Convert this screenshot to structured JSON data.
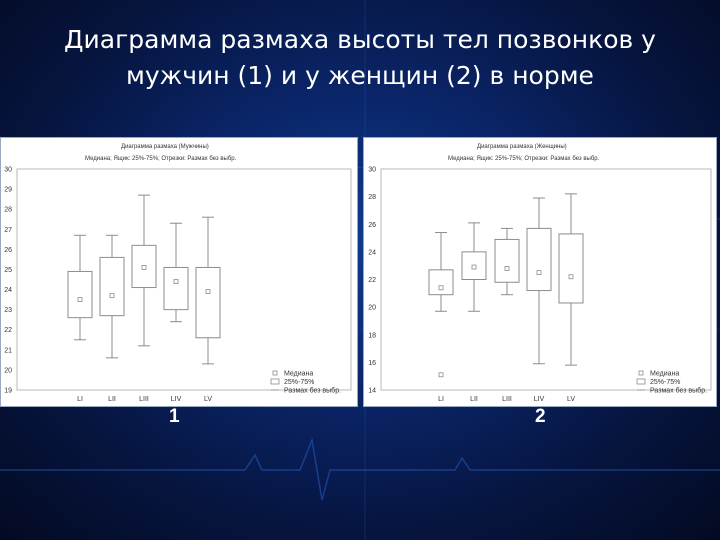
{
  "slide": {
    "title_line1": "Диаграмма размаха высоты тел позвонков у",
    "title_line2": "мужчин (1) и у женщин (2) в норме"
  },
  "colors": {
    "background": "#0a2466",
    "box_stroke": "#8c8c8c",
    "median_marker": "#8c8c8c"
  },
  "chart_data": [
    {
      "type": "box",
      "number_label": "1",
      "title": "Диаграмма размаха (Мужчины)",
      "subtitle": "Медиана; Ящик: 25%-75%; Отрезки: Размах без выбр.",
      "categories": [
        "LI",
        "LII",
        "LIII",
        "LIV",
        "LV"
      ],
      "ylim": [
        19,
        30
      ],
      "yticks": [
        19,
        20,
        21,
        22,
        23,
        24,
        25,
        26,
        27,
        28,
        29,
        30
      ],
      "grid": false,
      "legend_position": "bottom-right",
      "legend": [
        "Медиана",
        "25%-75%",
        "Размах без выбр."
      ],
      "series": [
        {
          "category": "LI",
          "min": 21.5,
          "q1": 22.6,
          "median": 23.5,
          "q3": 24.9,
          "max": 26.7
        },
        {
          "category": "LII",
          "min": 20.6,
          "q1": 22.7,
          "median": 23.7,
          "q3": 25.6,
          "max": 26.7
        },
        {
          "category": "LIII",
          "min": 21.2,
          "q1": 24.1,
          "median": 25.1,
          "q3": 26.2,
          "max": 28.7
        },
        {
          "category": "LIV",
          "min": 22.4,
          "q1": 23.0,
          "median": 24.4,
          "q3": 25.1,
          "max": 27.3
        },
        {
          "category": "LV",
          "min": 20.3,
          "q1": 21.6,
          "median": 23.9,
          "q3": 25.1,
          "max": 27.6
        }
      ],
      "outliers": []
    },
    {
      "type": "box",
      "number_label": "2",
      "title": "Диаграмма размаха (Женщины)",
      "subtitle": "Медиана; Ящик: 25%-75%; Отрезки: Размах без выбр.",
      "categories": [
        "LI",
        "LII",
        "LIII",
        "LIV",
        "LV"
      ],
      "ylim": [
        14,
        30
      ],
      "yticks": [
        14,
        16,
        18,
        20,
        22,
        24,
        26,
        28,
        30
      ],
      "grid": false,
      "legend_position": "bottom-right",
      "legend": [
        "Медиана",
        "25%-75%",
        "Размах без выбр."
      ],
      "series": [
        {
          "category": "LI",
          "min": 19.7,
          "q1": 20.9,
          "median": 21.4,
          "q3": 22.7,
          "max": 25.4
        },
        {
          "category": "LII",
          "min": 19.7,
          "q1": 22.0,
          "median": 22.9,
          "q3": 24.0,
          "max": 26.1
        },
        {
          "category": "LIII",
          "min": 20.9,
          "q1": 21.8,
          "median": 22.8,
          "q3": 24.9,
          "max": 25.7
        },
        {
          "category": "LIV",
          "min": 15.9,
          "q1": 21.2,
          "median": 22.5,
          "q3": 25.7,
          "max": 27.9
        },
        {
          "category": "LV",
          "min": 15.8,
          "q1": 20.3,
          "median": 22.2,
          "q3": 25.3,
          "max": 28.2
        }
      ],
      "outliers": [
        {
          "category": "LI",
          "value": 15.1
        }
      ]
    }
  ]
}
